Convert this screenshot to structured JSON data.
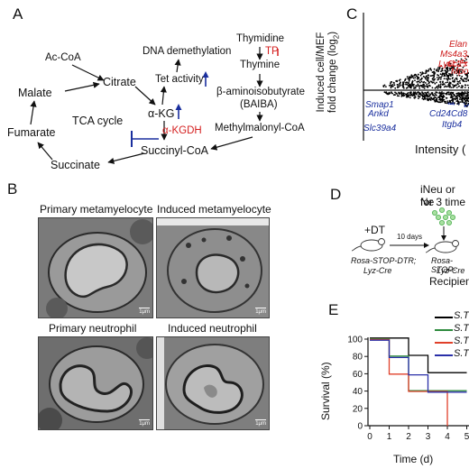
{
  "panelA": {
    "letter": "A",
    "nodes": {
      "acCoa": "Ac-CoA",
      "malate": "Malate",
      "citrate": "Citrate",
      "dnaDemethylation": "DNA demethylation",
      "tetActivity": "Tet activity",
      "akg": "α-KG",
      "kgdh": "α-KGDH",
      "tcaCycle": "TCA cycle",
      "fumarate": "Fumarate",
      "succinylCoa": "Succinyl-CoA",
      "succinate": "Succinate",
      "thymidine": "Thymidine",
      "tp": "TP",
      "thymine": "Thymine",
      "baibaName": "β-aminoisobutyrate",
      "baibaAbbr": "(BAIBA)",
      "methylmalonyl": "Methylmalonyl-CoA"
    },
    "colors": {
      "enzyme": "#d42020",
      "up": "#1a2f9e",
      "inhibit": "#1a2f9e"
    }
  },
  "panelB": {
    "letter": "B",
    "titles": [
      "Primary metamyelocyte",
      "Induced metamyelocyte",
      "Primary neutrophil",
      "Induced neutrophil"
    ],
    "scalebar": "1μm"
  },
  "panelC": {
    "letter": "C",
    "ylabel_line1": "Induced cell/MEF",
    "ylabel_line2": "fold change (log",
    "ylabel_sub": "2",
    "ylabel_close": ")",
    "xlabel": "Intensity (",
    "up_genes": [
      "Elan",
      "Ms4a3",
      "Ly6c1",
      "Mpo"
    ],
    "down_genes": [
      "Smap1",
      "Ankd",
      "Cd24",
      "Cd8",
      "Itgb4",
      "Slc39a4"
    ],
    "up_color": "#cc1a1a",
    "down_color": "#1a2f9e"
  },
  "panelD": {
    "letter": "D",
    "title_line1": "iNeu or Ne",
    "title_line2": "for 3 time",
    "dt": "+DT",
    "days": "10 days",
    "mouse1_line1": "Rosa-STOP-DTR;",
    "mouse1_line2": "Lyz-Cre",
    "mouse2_line1": "Rosa-STOP-",
    "mouse2_line2": "Lyz-Cre",
    "recipient": "Recipien"
  },
  "panelE": {
    "letter": "E",
    "ylabel": "Survival (%)",
    "xlabel": "Time (d)",
    "legend": [
      "S.T",
      "S.T",
      "S.T",
      "S.T"
    ]
  },
  "chart_data": {
    "type": "line",
    "ylabel": "Survival (%)",
    "xlabel": "Time (d)",
    "xlim": [
      0,
      5
    ],
    "ylim": [
      0,
      100
    ],
    "xticks": [
      0,
      1,
      2,
      3,
      4,
      5
    ],
    "yticks": [
      0,
      20,
      40,
      60,
      80,
      100
    ],
    "series": [
      {
        "name": "S.T",
        "color": "#000000",
        "x": [
          0,
          2,
          3,
          5
        ],
        "y": [
          100,
          80,
          60,
          60
        ]
      },
      {
        "name": "S.T",
        "color": "#2e8b3e",
        "x": [
          0,
          1,
          2,
          5
        ],
        "y": [
          100,
          80,
          40,
          40
        ]
      },
      {
        "name": "S.T",
        "color": "#e0402a",
        "x": [
          0,
          1,
          2,
          4
        ],
        "y": [
          100,
          60,
          40,
          0
        ]
      },
      {
        "name": "S.T",
        "color": "#2a2fa8",
        "x": [
          0,
          1,
          2,
          3,
          5
        ],
        "y": [
          100,
          80,
          60,
          40,
          40
        ]
      }
    ]
  }
}
